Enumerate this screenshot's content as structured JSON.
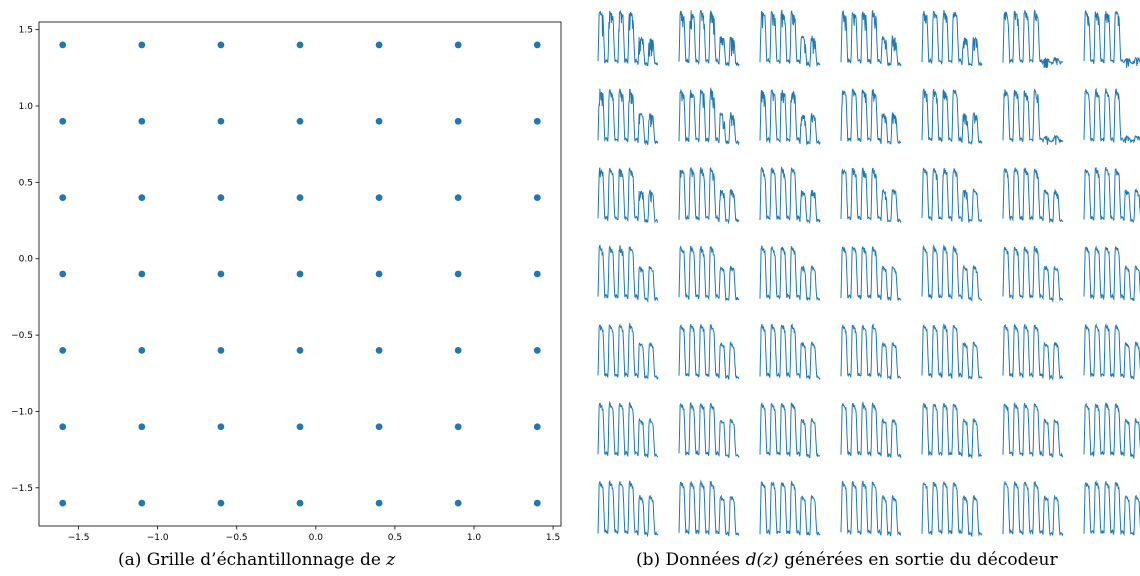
{
  "chart_data": [
    {
      "type": "scatter",
      "xlim": [
        -1.75,
        1.55
      ],
      "ylim": [
        -1.75,
        1.55
      ],
      "xticks": [
        -1.5,
        -1.0,
        -0.5,
        0.0,
        0.5,
        1.0,
        1.5
      ],
      "yticks": [
        -1.5,
        -1.0,
        -0.5,
        0.0,
        0.5,
        1.0,
        1.5
      ],
      "xtick_labels": [
        "−1.5",
        "−1.0",
        "−0.5",
        "0.0",
        "0.5",
        "1.0",
        "1.5"
      ],
      "ytick_labels": [
        "−1.5",
        "−1.0",
        "−0.5",
        "0.0",
        "0.5",
        "1.0",
        "1.5"
      ],
      "x_grid_values": [
        -1.6,
        -1.1,
        -0.6,
        -0.1,
        0.4,
        0.9,
        1.4
      ],
      "y_grid_values": [
        -1.6,
        -1.1,
        -0.6,
        -0.1,
        0.4,
        0.9,
        1.4
      ],
      "grid": false,
      "marker_color": "#1f77b4"
    },
    {
      "type": "line",
      "rows": 7,
      "cols": 7,
      "pulses_per_trace": 6,
      "line_color": "#1f77b4",
      "axes_visible": false
    }
  ],
  "captions": {
    "a_prefix": "(a) Grille d’échantillonnage de ",
    "a_var": "z",
    "b_prefix": "(b) Données ",
    "b_var": "d(z)",
    "b_suffix": " générées en sortie du décodeur"
  }
}
